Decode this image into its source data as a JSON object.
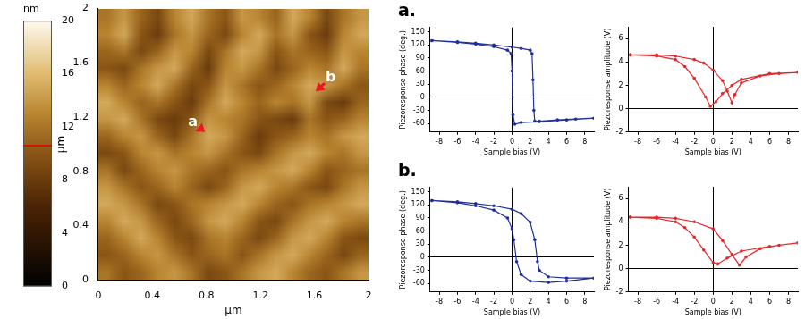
{
  "chart_data": [
    {
      "type": "heatmap",
      "x_label": "µm",
      "y_label": "µm",
      "xlim": [
        0,
        2
      ],
      "ylim": [
        0,
        2
      ],
      "xticks": [
        0,
        0.4,
        0.8,
        1.2,
        1.6,
        2
      ],
      "yticks": [
        0,
        0.4,
        0.8,
        1.2,
        1.6,
        2
      ],
      "grid": false,
      "cells": [
        [
          12,
          14,
          11,
          9,
          13,
          15,
          12,
          10,
          14,
          13,
          11,
          15,
          13,
          9,
          12,
          14
        ],
        [
          13,
          15,
          10,
          8,
          12,
          14,
          11,
          9,
          13,
          15,
          12,
          14,
          10,
          8,
          13,
          15
        ],
        [
          11,
          12,
          9,
          11,
          14,
          13,
          9,
          12,
          15,
          14,
          10,
          12,
          11,
          10,
          14,
          13
        ],
        [
          10,
          9,
          12,
          14,
          15,
          11,
          8,
          13,
          14,
          12,
          9,
          11,
          13,
          12,
          15,
          12
        ],
        [
          13,
          11,
          13,
          15,
          12,
          9,
          10,
          14,
          12,
          10,
          11,
          13,
          15,
          14,
          12,
          10
        ],
        [
          15,
          13,
          11,
          12,
          10,
          8,
          12,
          15,
          13,
          11,
          13,
          12,
          14,
          9,
          8,
          11
        ],
        [
          14,
          15,
          12,
          9,
          8,
          10,
          14,
          13,
          12,
          10,
          9,
          8,
          12,
          10,
          11,
          13
        ],
        [
          11,
          13,
          14,
          11,
          9,
          12,
          15,
          14,
          11,
          8,
          10,
          11,
          13,
          12,
          14,
          15
        ],
        [
          9,
          10,
          13,
          14,
          12,
          13,
          14,
          12,
          10,
          9,
          12,
          14,
          15,
          13,
          12,
          14
        ],
        [
          12,
          9,
          11,
          13,
          14,
          12,
          11,
          10,
          12,
          13,
          14,
          15,
          13,
          10,
          11,
          12
        ],
        [
          14,
          12,
          10,
          11,
          13,
          11,
          9,
          11,
          14,
          15,
          13,
          12,
          10,
          9,
          12,
          14
        ],
        [
          15,
          14,
          12,
          9,
          10,
          12,
          13,
          14,
          15,
          13,
          11,
          10,
          12,
          13,
          14,
          15
        ],
        [
          13,
          15,
          14,
          11,
          9,
          11,
          14,
          15,
          13,
          10,
          9,
          12,
          14,
          15,
          13,
          12
        ],
        [
          11,
          13,
          15,
          13,
          10,
          9,
          12,
          13,
          11,
          9,
          11,
          14,
          15,
          13,
          10,
          9
        ],
        [
          10,
          11,
          13,
          14,
          12,
          10,
          11,
          12,
          10,
          12,
          14,
          15,
          13,
          11,
          9,
          11
        ],
        [
          12,
          10,
          11,
          13,
          14,
          12,
          9,
          10,
          12,
          14,
          15,
          13,
          11,
          10,
          12,
          14
        ]
      ],
      "colorbar": {
        "label": "nm",
        "ylim": [
          0,
          20
        ],
        "yticks": [
          0,
          4,
          8,
          12,
          16,
          20
        ],
        "marker": 10.6
      },
      "annotations": [
        {
          "text": "a",
          "x": 0.7,
          "y": 1.16,
          "target_x": 0.79,
          "target_y": 1.09
        },
        {
          "text": "b",
          "x": 1.72,
          "y": 1.49,
          "target_x": 1.61,
          "target_y": 1.39
        }
      ]
    },
    {
      "type": "line",
      "title": "a.",
      "x_label": "Sample bias (V)",
      "y_label": "Piezoresponse phase (deg.)",
      "x": [
        -8.8,
        -6,
        -4,
        -2,
        0,
        1,
        2,
        2.2,
        2.3,
        2.4,
        2.5,
        3,
        5,
        7,
        9,
        6,
        3,
        1,
        0.3,
        0.1,
        0,
        -0.1,
        -0.5,
        -2,
        -4,
        -6,
        -8.8
      ],
      "values": [
        130,
        127,
        124,
        120,
        115,
        112,
        108,
        100,
        40,
        -30,
        -55,
        -55,
        -52,
        -50,
        -48,
        -52,
        -56,
        -58,
        -62,
        -40,
        60,
        100,
        108,
        116,
        122,
        126,
        130
      ],
      "color": "#1f2f9e",
      "marker": "circle",
      "grid": false,
      "xlim": [
        -9,
        9
      ],
      "xticks": [
        -8,
        -6,
        -4,
        -2,
        0,
        2,
        4,
        6,
        8
      ],
      "ylim": [
        -80,
        160
      ],
      "yticks": [
        -60,
        -30,
        0,
        30,
        60,
        90,
        120,
        150
      ]
    },
    {
      "type": "line",
      "x_label": "Sample bias (V)",
      "y_label": "Piezoresponse amplitude (V)",
      "x": [
        -8.8,
        -6,
        -4,
        -2,
        -1,
        0,
        1,
        1.5,
        2,
        2.3,
        3,
        5,
        7,
        9,
        6,
        3,
        2,
        1,
        0.3,
        -0.3,
        -0.8,
        -2,
        -3,
        -4,
        -6,
        -8.8
      ],
      "values": [
        4.6,
        4.6,
        4.5,
        4.2,
        3.9,
        3.3,
        2.4,
        1.5,
        0.5,
        1.2,
        2.2,
        2.8,
        3,
        3.1,
        3,
        2.5,
        2,
        1.3,
        0.6,
        0.2,
        1,
        2.6,
        3.6,
        4.2,
        4.5,
        4.6
      ],
      "color": "#e8262a",
      "marker": "circle",
      "grid": false,
      "xlim": [
        -9,
        9
      ],
      "xticks": [
        -8,
        -6,
        -4,
        -2,
        0,
        2,
        4,
        6,
        8
      ],
      "ylim": [
        -2,
        7
      ],
      "yticks": [
        -2,
        0,
        2,
        4,
        6
      ]
    },
    {
      "type": "line",
      "title": "b.",
      "x_label": "Sample bias (V)",
      "y_label": "Piezoresponse phase (deg.)",
      "x": [
        -8.8,
        -6,
        -4,
        -2,
        0,
        1,
        2,
        2.5,
        2.8,
        3,
        4,
        6,
        9,
        6,
        4,
        2,
        1,
        0.5,
        0.2,
        0,
        -0.5,
        -2,
        -4,
        -6,
        -8.8
      ],
      "values": [
        130,
        127,
        123,
        118,
        110,
        100,
        80,
        40,
        -10,
        -30,
        -45,
        -48,
        -48,
        -55,
        -58,
        -55,
        -40,
        -10,
        40,
        65,
        90,
        108,
        118,
        125,
        130
      ],
      "color": "#1f2f9e",
      "marker": "circle",
      "grid": false,
      "xlim": [
        -9,
        9
      ],
      "xticks": [
        -8,
        -6,
        -4,
        -2,
        0,
        2,
        4,
        6,
        8
      ],
      "ylim": [
        -80,
        160
      ],
      "yticks": [
        -60,
        -30,
        0,
        30,
        60,
        90,
        120,
        150
      ]
    },
    {
      "type": "line",
      "x_label": "Sample bias (V)",
      "y_label": "Piezoresponse amplitude (V)",
      "x": [
        -8.8,
        -6,
        -4,
        -2,
        0,
        1,
        2,
        2.8,
        3.5,
        5,
        7,
        9,
        6,
        3,
        1.5,
        0.5,
        0,
        -1,
        -2,
        -3,
        -4,
        -6,
        -8.8
      ],
      "values": [
        4.4,
        4.4,
        4.3,
        4.0,
        3.4,
        2.4,
        1.2,
        0.3,
        1.0,
        1.7,
        2.0,
        2.2,
        1.9,
        1.5,
        0.9,
        0.4,
        0.5,
        1.6,
        2.7,
        3.5,
        4.0,
        4.3,
        4.4
      ],
      "color": "#e8262a",
      "marker": "circle",
      "grid": false,
      "xlim": [
        -9,
        9
      ],
      "xticks": [
        -8,
        -6,
        -4,
        -2,
        0,
        2,
        4,
        6,
        8
      ],
      "ylim": [
        -2,
        7
      ],
      "yticks": [
        -2,
        0,
        2,
        4,
        6
      ]
    }
  ]
}
